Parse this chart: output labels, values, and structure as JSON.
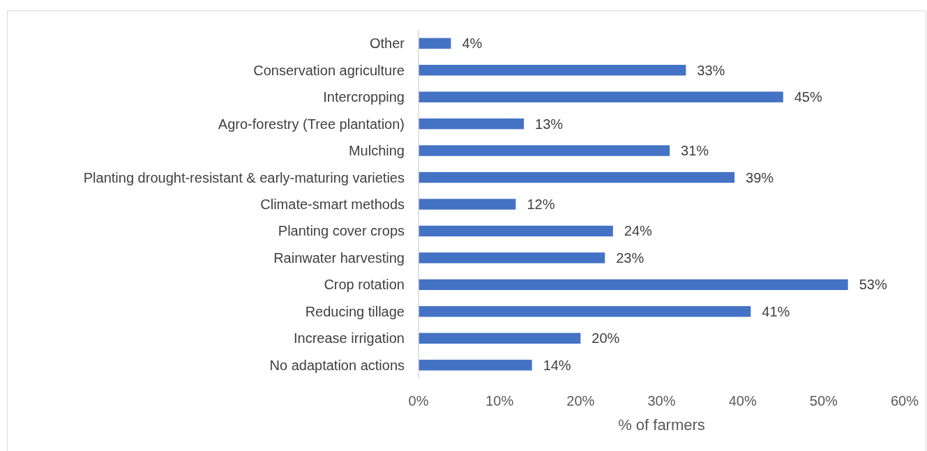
{
  "chart_data": {
    "type": "bar",
    "orientation": "horizontal",
    "xlabel": "% of farmers",
    "categories": [
      "Other",
      "Conservation agriculture",
      "Intercropping",
      "Agro-forestry (Tree plantation)",
      "Mulching",
      "Planting drought-resistant & early-maturing varieties",
      "Climate-smart methods ",
      "Planting cover crops",
      "Rainwater harvesting",
      "Crop rotation",
      "Reducing tillage",
      "Increase irrigation",
      "No adaptation actions"
    ],
    "values": [
      4,
      33,
      45,
      13,
      31,
      39,
      12,
      24,
      23,
      53,
      41,
      20,
      14
    ],
    "value_labels": [
      "4%",
      "33%",
      "45%",
      "13%",
      "31%",
      "39%",
      "12%",
      "24%",
      "23%",
      "53%",
      "41%",
      "20%",
      "14%"
    ],
    "color": "#4472c4",
    "xlim": [
      0,
      60
    ],
    "xticks": [
      {
        "value": 0,
        "label": "0%"
      },
      {
        "value": 10,
        "label": "10%"
      },
      {
        "value": 20,
        "label": "20%"
      },
      {
        "value": 30,
        "label": "30%"
      },
      {
        "value": 40,
        "label": "40%"
      },
      {
        "value": 50,
        "label": "50%"
      },
      {
        "value": 60,
        "label": "60%"
      }
    ],
    "grid": false
  }
}
